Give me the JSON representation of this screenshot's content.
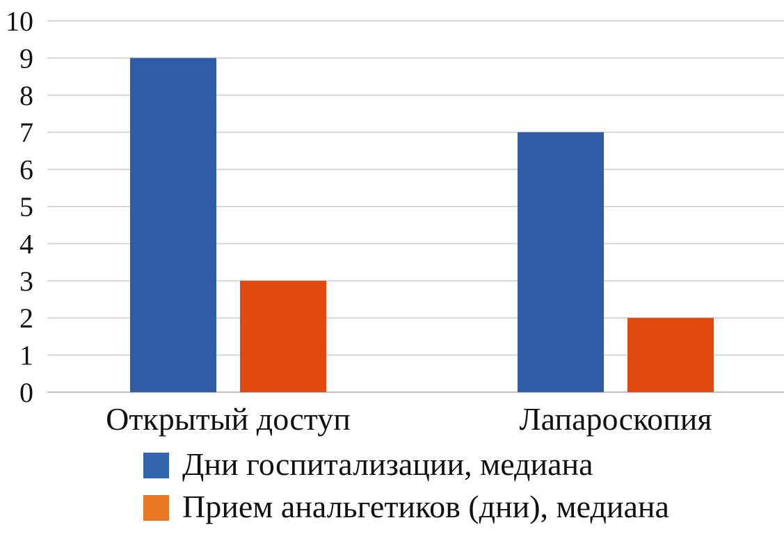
{
  "chart_data": {
    "type": "bar",
    "categories": [
      "Открытый доступ",
      "Лапароскопия"
    ],
    "series": [
      {
        "name": "Дни госпитализации, медиана",
        "values": [
          9,
          7
        ],
        "color": "#2e5ca8",
        "legend_color": "#3465ae"
      },
      {
        "name": "Прием анальгетиков (дни), медиана",
        "values": [
          3,
          2
        ],
        "color": "#e04a10",
        "legend_color": "#e87823"
      }
    ],
    "y_ticks": [
      "0",
      "1",
      "2",
      "3",
      "4",
      "5",
      "6",
      "7",
      "8",
      "9",
      "10"
    ],
    "ylim": [
      0,
      10
    ],
    "grid": true,
    "legend_position": "bottom"
  }
}
